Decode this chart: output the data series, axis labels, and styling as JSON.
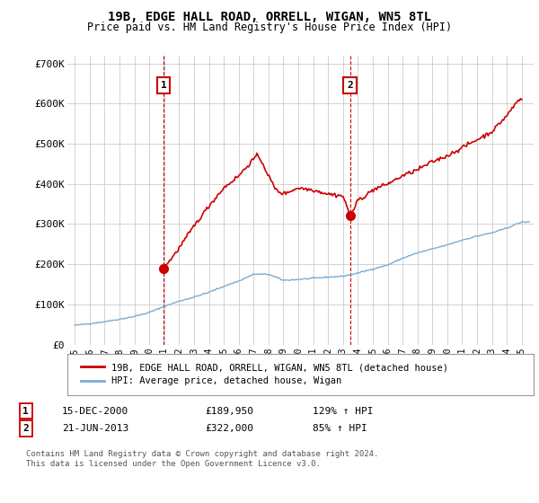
{
  "title": "19B, EDGE HALL ROAD, ORRELL, WIGAN, WN5 8TL",
  "subtitle": "Price paid vs. HM Land Registry's House Price Index (HPI)",
  "ylabel_ticks": [
    "£0",
    "£100K",
    "£200K",
    "£300K",
    "£400K",
    "£500K",
    "£600K",
    "£700K"
  ],
  "ytick_values": [
    0,
    100000,
    200000,
    300000,
    400000,
    500000,
    600000,
    700000
  ],
  "ylim": [
    0,
    720000
  ],
  "xlim_start": 1994.5,
  "xlim_end": 2025.8,
  "transaction1": {
    "date_x": 2000.96,
    "price": 189950,
    "label": "1"
  },
  "transaction2": {
    "date_x": 2013.47,
    "price": 322000,
    "label": "2"
  },
  "legend_house": "19B, EDGE HALL ROAD, ORRELL, WIGAN, WN5 8TL (detached house)",
  "legend_hpi": "HPI: Average price, detached house, Wigan",
  "table_rows": [
    [
      "1",
      "15-DEC-2000",
      "£189,950",
      "129% ↑ HPI"
    ],
    [
      "2",
      "21-JUN-2013",
      "£322,000",
      "85% ↑ HPI"
    ]
  ],
  "footnote": "Contains HM Land Registry data © Crown copyright and database right 2024.\nThis data is licensed under the Open Government Licence v3.0.",
  "house_color": "#cc0000",
  "hpi_color": "#7aadd4",
  "background_color": "#ffffff",
  "grid_color": "#cccccc",
  "xtick_years": [
    1995,
    1996,
    1997,
    1998,
    1999,
    2000,
    2001,
    2002,
    2003,
    2004,
    2005,
    2006,
    2007,
    2008,
    2009,
    2010,
    2011,
    2012,
    2013,
    2014,
    2015,
    2016,
    2017,
    2018,
    2019,
    2020,
    2021,
    2022,
    2023,
    2024,
    2025
  ],
  "hpi_key_x": [
    1995,
    1996,
    1997,
    1998,
    1999,
    2000,
    2001,
    2002,
    2003,
    2004,
    2005,
    2006,
    2007,
    2008,
    2009,
    2010,
    2011,
    2012,
    2013,
    2014,
    2015,
    2016,
    2017,
    2018,
    2019,
    2020,
    2021,
    2022,
    2023,
    2024,
    2025
  ],
  "hpi_key_y": [
    48000,
    52000,
    57000,
    63000,
    70000,
    80000,
    95000,
    108000,
    118000,
    130000,
    145000,
    158000,
    175000,
    175000,
    160000,
    162000,
    165000,
    168000,
    170000,
    178000,
    188000,
    198000,
    215000,
    228000,
    238000,
    248000,
    260000,
    270000,
    278000,
    290000,
    305000
  ],
  "house_key_x": [
    2000.96,
    2001.5,
    2002,
    2003,
    2004,
    2005,
    2006,
    2007.2,
    2007.5,
    2008,
    2008.5,
    2009,
    2010,
    2011,
    2012,
    2013.0,
    2013.47,
    2013.8,
    2014,
    2014.5,
    2015,
    2016,
    2017,
    2018,
    2019,
    2020,
    2021,
    2022,
    2023,
    2024,
    2024.8
  ],
  "house_key_y": [
    189950,
    215000,
    240000,
    295000,
    345000,
    390000,
    420000,
    470000,
    460000,
    420000,
    385000,
    375000,
    390000,
    385000,
    375000,
    370000,
    322000,
    340000,
    360000,
    370000,
    385000,
    400000,
    420000,
    435000,
    455000,
    470000,
    490000,
    510000,
    530000,
    570000,
    610000
  ]
}
